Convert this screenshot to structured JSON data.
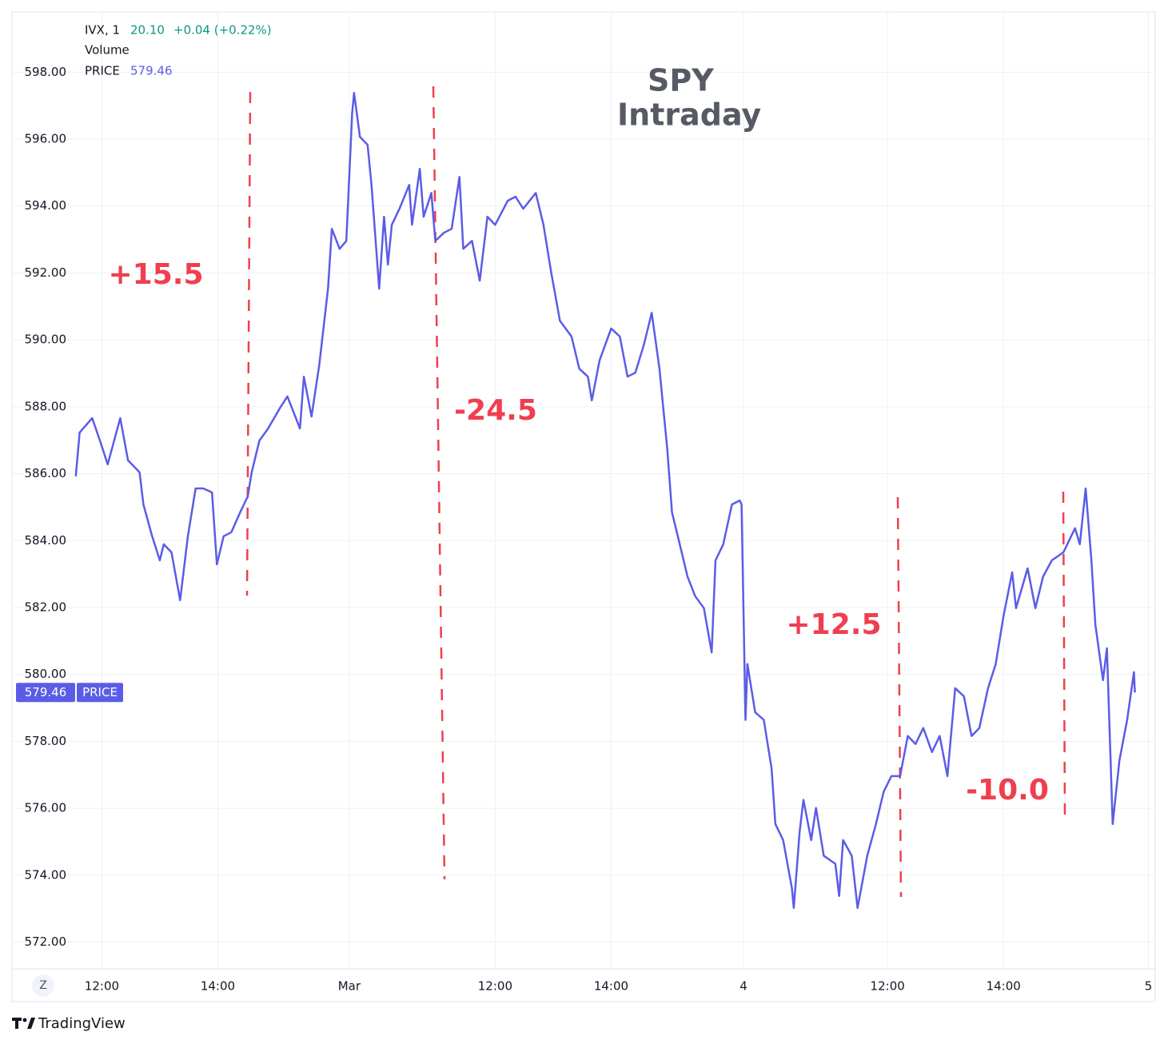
{
  "chart_data": {
    "type": "line",
    "title": "SPY",
    "subtitle": "Intraday",
    "header": {
      "symbol": "IVX, 1",
      "symbol_value": "20.10",
      "symbol_change": "+0.04 (+0.22%)",
      "volume": "Volume"
    },
    "annotations": [
      "+15.5",
      "-24.5",
      "+12.5",
      "-10.0"
    ],
    "button": "Z",
    "logo": "TradingView",
    "xlim": [
      -66,
      1117
    ],
    "xticks": [
      {
        "value": 27,
        "label": "12:00"
      },
      {
        "value": 147,
        "label": "14:00"
      },
      {
        "value": 283,
        "label": "Mar"
      },
      {
        "value": 434,
        "label": "12:00"
      },
      {
        "value": 554,
        "label": "14:00"
      },
      {
        "value": 691,
        "label": "4"
      },
      {
        "value": 840,
        "label": "12:00"
      },
      {
        "value": 960,
        "label": "14:00"
      },
      {
        "value": 1110,
        "label": "5"
      }
    ],
    "ylim": [
      571.2,
      599.8
    ],
    "yticks": [
      {
        "value": 572,
        "label": "572.00"
      },
      {
        "value": 574,
        "label": "574.00"
      },
      {
        "value": 576,
        "label": "576.00"
      },
      {
        "value": 578,
        "label": "578.00"
      },
      {
        "value": 580,
        "label": "580.00"
      },
      {
        "value": 582,
        "label": "582.00"
      },
      {
        "value": 584,
        "label": "584.00"
      },
      {
        "value": 586,
        "label": "586.00"
      },
      {
        "value": 588,
        "label": "588.00"
      },
      {
        "value": 590,
        "label": "590.00"
      },
      {
        "value": 592,
        "label": "592.00"
      },
      {
        "value": 594,
        "label": "594.00"
      },
      {
        "value": 596,
        "label": "596.00"
      },
      {
        "value": 598,
        "label": "598.00"
      }
    ],
    "grid": true,
    "x": [
      0,
      4,
      17,
      25,
      33,
      46,
      54,
      66,
      70,
      79,
      87,
      91,
      99,
      108,
      116,
      124,
      132,
      141,
      146,
      153,
      161,
      170,
      178,
      182,
      190,
      199,
      211,
      219,
      232,
      236,
      244,
      252,
      261,
      265,
      273,
      280,
      286,
      288,
      294,
      302,
      306,
      314,
      319,
      323,
      327,
      335,
      345,
      348,
      356,
      360,
      368,
      372,
      381,
      389,
      397,
      401,
      410,
      418,
      426,
      434,
      447,
      455,
      463,
      476,
      484,
      492,
      501,
      513,
      521,
      530,
      534,
      542,
      554,
      563,
      571,
      579,
      588,
      596,
      604,
      612,
      617,
      625,
      633,
      641,
      650,
      658,
      662,
      670,
      679,
      687,
      689,
      693,
      695,
      703,
      712,
      720,
      724,
      732,
      741,
      743,
      749,
      753,
      761,
      766,
      774,
      786,
      790,
      794,
      803,
      809,
      819,
      828,
      836,
      844,
      853,
      861,
      869,
      877,
      886,
      894,
      902,
      910,
      919,
      927,
      935,
      944,
      952,
      960,
      969,
      973,
      985,
      993,
      1001,
      1010,
      1022,
      1034,
      1039,
      1045,
      1051,
      1055,
      1063,
      1067,
      1073,
      1080,
      1088,
      1095,
      1096
    ],
    "series": [
      {
        "name": "PRICE",
        "color": "#5b5ce6",
        "values": [
          585.92,
          587.23,
          587.66,
          586.99,
          586.28,
          587.66,
          586.4,
          586.04,
          585.08,
          584.13,
          583.41,
          583.89,
          583.65,
          582.22,
          584.13,
          585.56,
          585.56,
          585.44,
          583.29,
          584.13,
          584.25,
          584.84,
          585.32,
          586.04,
          586.99,
          587.35,
          587.95,
          588.31,
          587.35,
          588.9,
          587.71,
          589.26,
          591.53,
          593.32,
          592.72,
          592.96,
          596.78,
          597.38,
          596.07,
          595.83,
          594.63,
          591.53,
          593.68,
          592.25,
          593.44,
          593.92,
          594.63,
          593.44,
          595.11,
          593.68,
          594.39,
          592.96,
          593.2,
          593.32,
          594.87,
          592.72,
          592.96,
          591.77,
          593.68,
          593.44,
          594.16,
          594.28,
          593.92,
          594.39,
          593.44,
          592.01,
          590.57,
          590.1,
          589.14,
          588.9,
          588.19,
          589.38,
          590.34,
          590.1,
          588.9,
          589.02,
          589.86,
          590.81,
          589.14,
          586.75,
          584.84,
          583.89,
          582.93,
          582.34,
          581.98,
          580.66,
          583.41,
          583.89,
          585.08,
          585.2,
          585.08,
          578.64,
          580.31,
          578.87,
          578.64,
          577.2,
          575.53,
          575.05,
          573.62,
          573.02,
          575.29,
          576.25,
          575.05,
          576.01,
          574.58,
          574.34,
          573.38,
          575.05,
          574.58,
          573.02,
          574.58,
          575.53,
          576.49,
          576.96,
          576.96,
          578.16,
          577.92,
          578.4,
          577.68,
          578.16,
          576.96,
          579.59,
          579.35,
          578.16,
          578.4,
          579.59,
          580.31,
          581.74,
          583.05,
          581.98,
          583.17,
          581.98,
          582.93,
          583.41,
          583.65,
          584.37,
          583.89,
          585.56,
          583.41,
          581.5,
          579.83,
          580.78,
          575.53,
          577.44,
          578.64,
          580.07,
          579.46
        ]
      }
    ]
  }
}
